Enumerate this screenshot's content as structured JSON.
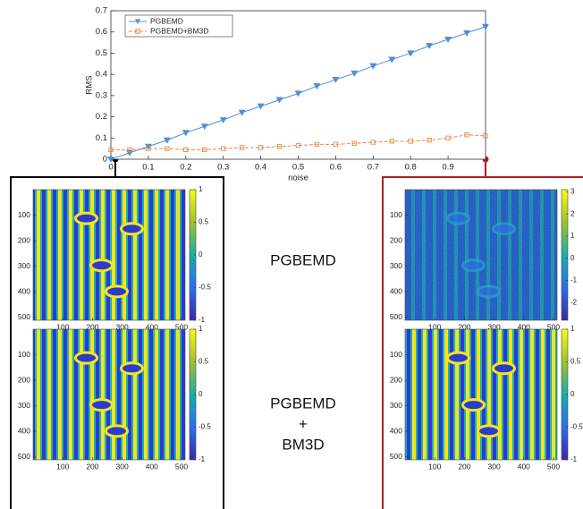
{
  "chart_data": {
    "type": "line",
    "xlabel": "noise",
    "ylabel": "RMS",
    "x": [
      0,
      0.05,
      0.1,
      0.15,
      0.2,
      0.25,
      0.3,
      0.35,
      0.4,
      0.45,
      0.5,
      0.55,
      0.6,
      0.65,
      0.7,
      0.75,
      0.8,
      0.85,
      0.9,
      0.95,
      1.0
    ],
    "series": [
      {
        "name": "PGBEMD",
        "color": "#4f8fd6",
        "marker": "triangle-down",
        "dash": "solid",
        "values": [
          0,
          0.03,
          0.06,
          0.09,
          0.125,
          0.155,
          0.185,
          0.22,
          0.25,
          0.28,
          0.31,
          0.345,
          0.375,
          0.405,
          0.44,
          0.47,
          0.5,
          0.535,
          0.565,
          0.595,
          0.625
        ]
      },
      {
        "name": "PGBEMD+BM3D",
        "color": "#e8874d",
        "marker": "square",
        "dash": "dashed",
        "values": [
          0.045,
          0.045,
          0.05,
          0.05,
          0.045,
          0.045,
          0.05,
          0.055,
          0.055,
          0.06,
          0.065,
          0.07,
          0.07,
          0.075,
          0.08,
          0.085,
          0.085,
          0.09,
          0.1,
          0.115,
          0.11
        ]
      }
    ],
    "xlim": [
      0,
      1
    ],
    "ylim": [
      0,
      0.7
    ],
    "xticks": [
      0,
      0.1,
      0.2,
      0.3,
      0.4,
      0.5,
      0.6,
      0.7,
      0.8,
      0.9
    ],
    "yticks": [
      0,
      0.1,
      0.2,
      0.3,
      0.4,
      0.5,
      0.6,
      0.7
    ],
    "grid": false,
    "legend": "upper left"
  },
  "images": [
    {
      "xlim": [
        0,
        512
      ],
      "ylim": [
        0,
        512
      ],
      "xticks": [
        100,
        200,
        300,
        400,
        500
      ],
      "yticks": [
        100,
        200,
        300,
        400,
        500
      ],
      "clim": [
        -1,
        1
      ],
      "colorbar_ticks": [
        1,
        0.5,
        0,
        -0.5,
        -1
      ],
      "noisy": false
    },
    {
      "xlim": [
        0,
        512
      ],
      "ylim": [
        0,
        512
      ],
      "xticks": [
        100,
        200,
        300,
        400,
        500
      ],
      "yticks": [
        100,
        200,
        300,
        400,
        500
      ],
      "clim": [
        -1,
        1
      ],
      "colorbar_ticks": [
        1,
        0.5,
        0,
        -0.5,
        -1
      ],
      "noisy": false
    },
    {
      "xlim": [
        0,
        512
      ],
      "ylim": [
        0,
        512
      ],
      "xticks": [
        100,
        200,
        300,
        400,
        500
      ],
      "yticks": [
        100,
        200,
        300,
        400,
        500
      ],
      "clim": [
        -2.8,
        3.1
      ],
      "colorbar_ticks": [
        3,
        2,
        1,
        0,
        -1,
        -2
      ],
      "noisy": true
    },
    {
      "xlim": [
        0,
        512
      ],
      "ylim": [
        0,
        512
      ],
      "xticks": [
        100,
        200,
        300,
        400,
        500
      ],
      "yticks": [
        100,
        200,
        300,
        400,
        500
      ],
      "clim": [
        -1,
        1
      ],
      "colorbar_ticks": [
        1,
        0.5,
        0,
        -0.5,
        -1
      ],
      "noisy": false
    }
  ],
  "labels": {
    "method_1": "PGBEMD",
    "method_2": [
      "PGBEMD",
      "+",
      "BM3D"
    ]
  }
}
